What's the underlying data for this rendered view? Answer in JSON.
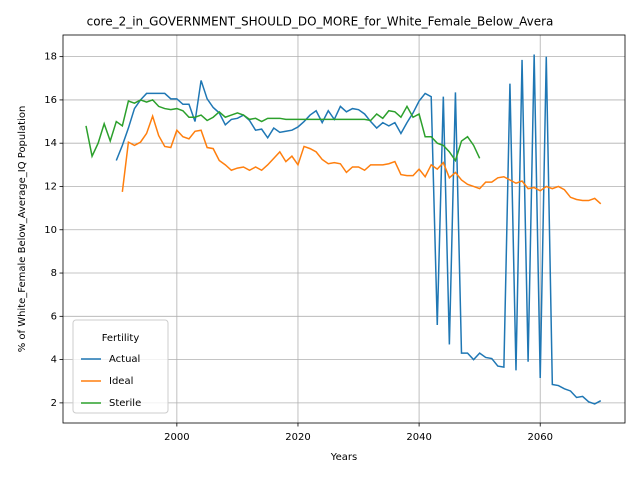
{
  "chart_data": {
    "type": "line",
    "title": "core_2_in_GOVERNMENT_SHOULD_DO_MORE_for_White_Female_Below_Avera",
    "xlabel": "Years",
    "ylabel": "% of White_Female Below_Average_IQ Population",
    "x": [
      1985,
      1986,
      1987,
      1988,
      1989,
      1990,
      1991,
      1992,
      1993,
      1994,
      1995,
      1996,
      1997,
      1998,
      1999,
      2000,
      2001,
      2002,
      2003,
      2004,
      2005,
      2006,
      2007,
      2008,
      2009,
      2010,
      2011,
      2012,
      2013,
      2014,
      2015,
      2016,
      2017,
      2018,
      2019,
      2020,
      2021,
      2022,
      2023,
      2024,
      2025,
      2026,
      2027,
      2028,
      2029,
      2030,
      2031,
      2032,
      2033,
      2034,
      2035,
      2036,
      2037,
      2038,
      2039,
      2040,
      2041,
      2042,
      2043,
      2044,
      2045,
      2046,
      2047,
      2048,
      2049,
      2050,
      2051,
      2052,
      2053,
      2054,
      2055,
      2056,
      2057,
      2058,
      2059,
      2060,
      2061,
      2062,
      2063,
      2064,
      2065,
      2066,
      2067,
      2068,
      2069,
      2070
    ],
    "series": [
      {
        "name": "Actual",
        "color": "#1f77b4",
        "values": [
          null,
          null,
          null,
          null,
          null,
          13.2,
          13.9,
          14.7,
          15.6,
          16.0,
          16.3,
          16.3,
          16.3,
          16.3,
          16.05,
          16.05,
          15.8,
          15.8,
          15.0,
          16.9,
          16.05,
          15.65,
          15.4,
          14.85,
          15.1,
          15.15,
          15.3,
          15.05,
          14.6,
          14.65,
          14.25,
          14.7,
          14.5,
          14.55,
          14.6,
          14.75,
          15.0,
          15.3,
          15.5,
          14.95,
          15.5,
          15.1,
          15.7,
          15.45,
          15.6,
          15.55,
          15.35,
          15.0,
          14.7,
          14.95,
          14.8,
          14.95,
          14.45,
          14.95,
          15.4,
          15.95,
          16.3,
          16.15,
          5.6,
          16.15,
          4.7,
          16.35,
          4.3,
          4.3,
          4.0,
          4.3,
          4.1,
          4.05,
          3.7,
          3.65,
          16.75,
          3.5,
          17.85,
          3.9,
          18.1,
          3.15,
          18.0,
          2.85,
          2.8,
          2.65,
          2.55,
          2.25,
          2.3,
          2.05,
          1.95,
          2.1
        ]
      },
      {
        "name": "Ideal",
        "color": "#ff7f0e",
        "values": [
          null,
          null,
          null,
          null,
          null,
          null,
          11.75,
          14.05,
          13.9,
          14.05,
          14.45,
          15.25,
          14.35,
          13.85,
          13.8,
          14.6,
          14.3,
          14.2,
          14.55,
          14.6,
          13.8,
          13.75,
          13.2,
          13.0,
          12.75,
          12.85,
          12.9,
          12.75,
          12.9,
          12.75,
          13.0,
          13.3,
          13.6,
          13.15,
          13.4,
          13.0,
          13.85,
          13.75,
          13.6,
          13.25,
          13.05,
          13.1,
          13.05,
          12.65,
          12.9,
          12.9,
          12.75,
          13.0,
          13.0,
          13.0,
          13.05,
          13.15,
          12.55,
          12.5,
          12.5,
          12.8,
          12.45,
          13.0,
          12.8,
          13.1,
          12.4,
          12.65,
          12.3,
          12.1,
          12.0,
          11.9,
          12.2,
          12.2,
          12.4,
          12.45,
          12.3,
          12.15,
          12.25,
          11.9,
          11.95,
          11.8,
          12.0,
          11.9,
          12.0,
          11.85,
          11.5,
          11.4,
          11.35,
          11.35,
          11.45,
          11.2
        ]
      },
      {
        "name": "Sterile",
        "color": "#2ca02c",
        "values": [
          14.8,
          13.4,
          14.0,
          14.9,
          14.1,
          15.0,
          14.8,
          15.95,
          15.85,
          16.0,
          15.9,
          16.0,
          15.7,
          15.6,
          15.55,
          15.6,
          15.5,
          15.2,
          15.2,
          15.3,
          15.05,
          15.2,
          15.45,
          15.2,
          15.3,
          15.4,
          15.3,
          15.1,
          15.15,
          15.0,
          15.15,
          15.15,
          15.15,
          15.1,
          15.1,
          15.1,
          15.1,
          15.1,
          15.1,
          15.1,
          15.1,
          15.1,
          15.1,
          15.1,
          15.1,
          15.1,
          15.1,
          15.05,
          15.35,
          15.15,
          15.5,
          15.45,
          15.2,
          15.7,
          15.2,
          15.35,
          14.3,
          14.3,
          14.0,
          13.9,
          13.6,
          13.2,
          14.1,
          14.3,
          13.9,
          13.3,
          null,
          null,
          null,
          null,
          null,
          null,
          null,
          null,
          null,
          null,
          null,
          null,
          null,
          null,
          null,
          null,
          null,
          null,
          null,
          null
        ]
      }
    ],
    "xlim": [
      1981.2,
      2074
    ],
    "ylim": [
      1.07,
      19.0
    ],
    "xticks": [
      2000,
      2020,
      2040,
      2060
    ],
    "yticks": [
      2,
      4,
      6,
      8,
      10,
      12,
      14,
      16,
      18
    ],
    "grid": true,
    "legend": {
      "title": "Fertility",
      "position": "lower left"
    }
  }
}
